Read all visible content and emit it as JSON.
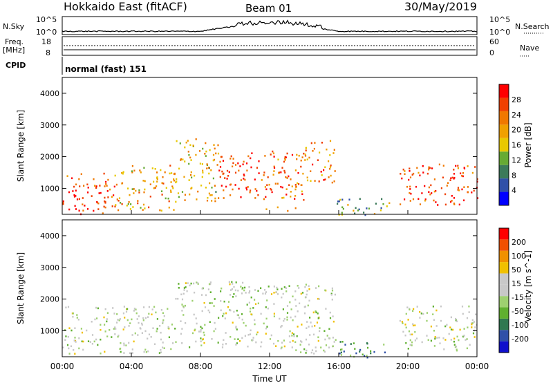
{
  "header": {
    "site": "Hokkaido East (fitACF)",
    "beam": "Beam 01",
    "date": "30/May/2019"
  },
  "top_panel": {
    "nsky_label": "N.Sky",
    "nsky_ticks": [
      "10^5",
      "10^0"
    ],
    "nsearch_label": "N.Search",
    "right_ticks": [
      "10^5",
      "10^0"
    ],
    "freq_label_1": "Freq.",
    "freq_label_2": "[MHz]",
    "freq_ticks": [
      "18",
      "8"
    ],
    "nave_label": "Nave",
    "nave_ticks": [
      "60",
      "0"
    ],
    "cpid_label": "CPID",
    "cpid_text": "normal (fast) 151"
  },
  "colors": {
    "power_scale": [
      "#0000ff",
      "#3050a8",
      "#3c7a5a",
      "#66aa33",
      "#e8c800",
      "#f0a000",
      "#f07800",
      "#f04000",
      "#ff0000"
    ],
    "velocity_scale": [
      "#1010cc",
      "#3050a8",
      "#307850",
      "#60b030",
      "#9ed070",
      "#c8c8c8",
      "#c8c8c8",
      "#f0c000",
      "#f09000",
      "#f05000",
      "#ff0000"
    ]
  },
  "chart_data": [
    {
      "type": "heatmap",
      "name_key": "power",
      "ylabel": "Slant Range [km]",
      "ylim": [
        180,
        4500
      ],
      "yticks": [
        1000,
        2000,
        3000,
        4000
      ],
      "xlim": [
        0,
        24
      ],
      "colorbar": {
        "label": "Power [dB]",
        "range": [
          0,
          32
        ],
        "ticks": [
          4,
          8,
          12,
          16,
          20,
          24,
          28
        ]
      },
      "regions": [
        {
          "t0": 0.0,
          "t1": 3.0,
          "r0": 200,
          "r1": 1500,
          "level": 0.85
        },
        {
          "t0": 3.0,
          "t1": 6.5,
          "r0": 300,
          "r1": 1800,
          "level": 0.6
        },
        {
          "t0": 6.5,
          "t1": 9.0,
          "r0": 600,
          "r1": 2600,
          "level": 0.55
        },
        {
          "t0": 9.0,
          "t1": 11.5,
          "r0": 700,
          "r1": 2200,
          "level": 0.9
        },
        {
          "t0": 11.5,
          "t1": 14.0,
          "r0": 300,
          "r1": 2200,
          "level": 0.75
        },
        {
          "t0": 14.0,
          "t1": 15.8,
          "r0": 1200,
          "r1": 2600,
          "level": 0.7
        },
        {
          "t0": 15.5,
          "t1": 19.0,
          "r0": 180,
          "r1": 700,
          "level": 0.35
        },
        {
          "t0": 19.5,
          "t1": 24.0,
          "r0": 500,
          "r1": 1800,
          "level": 0.85
        }
      ]
    },
    {
      "type": "heatmap",
      "name_key": "velocity",
      "ylabel": "Slant Range [km]",
      "ylim": [
        180,
        4500
      ],
      "yticks": [
        1000,
        2000,
        3000,
        4000
      ],
      "xlim": [
        0,
        24
      ],
      "xticks": [
        "00:00",
        "04:00",
        "08:00",
        "12:00",
        "16:00",
        "20:00",
        "00:00"
      ],
      "xlabel": "Time UT",
      "colorbar": {
        "label": "Velocity [m s^-1]",
        "ticks": [
          "200",
          "100",
          "50",
          "15",
          "-15",
          "-50",
          "-100",
          "-200"
        ]
      },
      "regions": [
        {
          "t0": 0.0,
          "t1": 6.5,
          "r0": 300,
          "r1": 1800,
          "level": 0.5
        },
        {
          "t0": 6.5,
          "t1": 11.0,
          "r0": 500,
          "r1": 2600,
          "level": 0.48
        },
        {
          "t0": 11.0,
          "t1": 15.8,
          "r0": 300,
          "r1": 2500,
          "level": 0.5
        },
        {
          "t0": 15.5,
          "t1": 19.0,
          "r0": 180,
          "r1": 700,
          "level": 0.25
        },
        {
          "t0": 19.5,
          "t1": 24.0,
          "r0": 400,
          "r1": 1800,
          "level": 0.5
        }
      ]
    }
  ]
}
